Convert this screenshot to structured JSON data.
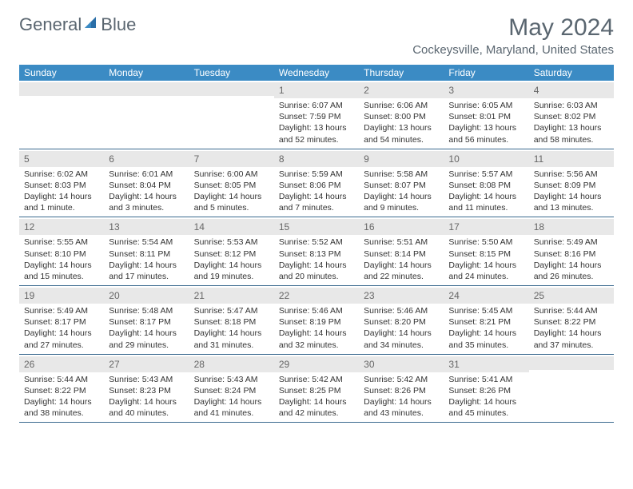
{
  "logo_general": "General",
  "logo_blue": "Blue",
  "month_title": "May 2024",
  "location": "Cockeysville, Maryland, United States",
  "header_bg": "#3b8bc4",
  "daynum_bg": "#e8e8e8",
  "border_color": "#3b6a8f",
  "text_color": "#333333",
  "muted_color": "#5a6670",
  "weekdays": [
    "Sunday",
    "Monday",
    "Tuesday",
    "Wednesday",
    "Thursday",
    "Friday",
    "Saturday"
  ],
  "weeks": [
    [
      {
        "n": "",
        "sunrise": "",
        "sunset": "",
        "daylight": ""
      },
      {
        "n": "",
        "sunrise": "",
        "sunset": "",
        "daylight": ""
      },
      {
        "n": "",
        "sunrise": "",
        "sunset": "",
        "daylight": ""
      },
      {
        "n": "1",
        "sunrise": "Sunrise: 6:07 AM",
        "sunset": "Sunset: 7:59 PM",
        "daylight": "Daylight: 13 hours and 52 minutes."
      },
      {
        "n": "2",
        "sunrise": "Sunrise: 6:06 AM",
        "sunset": "Sunset: 8:00 PM",
        "daylight": "Daylight: 13 hours and 54 minutes."
      },
      {
        "n": "3",
        "sunrise": "Sunrise: 6:05 AM",
        "sunset": "Sunset: 8:01 PM",
        "daylight": "Daylight: 13 hours and 56 minutes."
      },
      {
        "n": "4",
        "sunrise": "Sunrise: 6:03 AM",
        "sunset": "Sunset: 8:02 PM",
        "daylight": "Daylight: 13 hours and 58 minutes."
      }
    ],
    [
      {
        "n": "5",
        "sunrise": "Sunrise: 6:02 AM",
        "sunset": "Sunset: 8:03 PM",
        "daylight": "Daylight: 14 hours and 1 minute."
      },
      {
        "n": "6",
        "sunrise": "Sunrise: 6:01 AM",
        "sunset": "Sunset: 8:04 PM",
        "daylight": "Daylight: 14 hours and 3 minutes."
      },
      {
        "n": "7",
        "sunrise": "Sunrise: 6:00 AM",
        "sunset": "Sunset: 8:05 PM",
        "daylight": "Daylight: 14 hours and 5 minutes."
      },
      {
        "n": "8",
        "sunrise": "Sunrise: 5:59 AM",
        "sunset": "Sunset: 8:06 PM",
        "daylight": "Daylight: 14 hours and 7 minutes."
      },
      {
        "n": "9",
        "sunrise": "Sunrise: 5:58 AM",
        "sunset": "Sunset: 8:07 PM",
        "daylight": "Daylight: 14 hours and 9 minutes."
      },
      {
        "n": "10",
        "sunrise": "Sunrise: 5:57 AM",
        "sunset": "Sunset: 8:08 PM",
        "daylight": "Daylight: 14 hours and 11 minutes."
      },
      {
        "n": "11",
        "sunrise": "Sunrise: 5:56 AM",
        "sunset": "Sunset: 8:09 PM",
        "daylight": "Daylight: 14 hours and 13 minutes."
      }
    ],
    [
      {
        "n": "12",
        "sunrise": "Sunrise: 5:55 AM",
        "sunset": "Sunset: 8:10 PM",
        "daylight": "Daylight: 14 hours and 15 minutes."
      },
      {
        "n": "13",
        "sunrise": "Sunrise: 5:54 AM",
        "sunset": "Sunset: 8:11 PM",
        "daylight": "Daylight: 14 hours and 17 minutes."
      },
      {
        "n": "14",
        "sunrise": "Sunrise: 5:53 AM",
        "sunset": "Sunset: 8:12 PM",
        "daylight": "Daylight: 14 hours and 19 minutes."
      },
      {
        "n": "15",
        "sunrise": "Sunrise: 5:52 AM",
        "sunset": "Sunset: 8:13 PM",
        "daylight": "Daylight: 14 hours and 20 minutes."
      },
      {
        "n": "16",
        "sunrise": "Sunrise: 5:51 AM",
        "sunset": "Sunset: 8:14 PM",
        "daylight": "Daylight: 14 hours and 22 minutes."
      },
      {
        "n": "17",
        "sunrise": "Sunrise: 5:50 AM",
        "sunset": "Sunset: 8:15 PM",
        "daylight": "Daylight: 14 hours and 24 minutes."
      },
      {
        "n": "18",
        "sunrise": "Sunrise: 5:49 AM",
        "sunset": "Sunset: 8:16 PM",
        "daylight": "Daylight: 14 hours and 26 minutes."
      }
    ],
    [
      {
        "n": "19",
        "sunrise": "Sunrise: 5:49 AM",
        "sunset": "Sunset: 8:17 PM",
        "daylight": "Daylight: 14 hours and 27 minutes."
      },
      {
        "n": "20",
        "sunrise": "Sunrise: 5:48 AM",
        "sunset": "Sunset: 8:17 PM",
        "daylight": "Daylight: 14 hours and 29 minutes."
      },
      {
        "n": "21",
        "sunrise": "Sunrise: 5:47 AM",
        "sunset": "Sunset: 8:18 PM",
        "daylight": "Daylight: 14 hours and 31 minutes."
      },
      {
        "n": "22",
        "sunrise": "Sunrise: 5:46 AM",
        "sunset": "Sunset: 8:19 PM",
        "daylight": "Daylight: 14 hours and 32 minutes."
      },
      {
        "n": "23",
        "sunrise": "Sunrise: 5:46 AM",
        "sunset": "Sunset: 8:20 PM",
        "daylight": "Daylight: 14 hours and 34 minutes."
      },
      {
        "n": "24",
        "sunrise": "Sunrise: 5:45 AM",
        "sunset": "Sunset: 8:21 PM",
        "daylight": "Daylight: 14 hours and 35 minutes."
      },
      {
        "n": "25",
        "sunrise": "Sunrise: 5:44 AM",
        "sunset": "Sunset: 8:22 PM",
        "daylight": "Daylight: 14 hours and 37 minutes."
      }
    ],
    [
      {
        "n": "26",
        "sunrise": "Sunrise: 5:44 AM",
        "sunset": "Sunset: 8:22 PM",
        "daylight": "Daylight: 14 hours and 38 minutes."
      },
      {
        "n": "27",
        "sunrise": "Sunrise: 5:43 AM",
        "sunset": "Sunset: 8:23 PM",
        "daylight": "Daylight: 14 hours and 40 minutes."
      },
      {
        "n": "28",
        "sunrise": "Sunrise: 5:43 AM",
        "sunset": "Sunset: 8:24 PM",
        "daylight": "Daylight: 14 hours and 41 minutes."
      },
      {
        "n": "29",
        "sunrise": "Sunrise: 5:42 AM",
        "sunset": "Sunset: 8:25 PM",
        "daylight": "Daylight: 14 hours and 42 minutes."
      },
      {
        "n": "30",
        "sunrise": "Sunrise: 5:42 AM",
        "sunset": "Sunset: 8:26 PM",
        "daylight": "Daylight: 14 hours and 43 minutes."
      },
      {
        "n": "31",
        "sunrise": "Sunrise: 5:41 AM",
        "sunset": "Sunset: 8:26 PM",
        "daylight": "Daylight: 14 hours and 45 minutes."
      },
      {
        "n": "",
        "sunrise": "",
        "sunset": "",
        "daylight": ""
      }
    ]
  ]
}
